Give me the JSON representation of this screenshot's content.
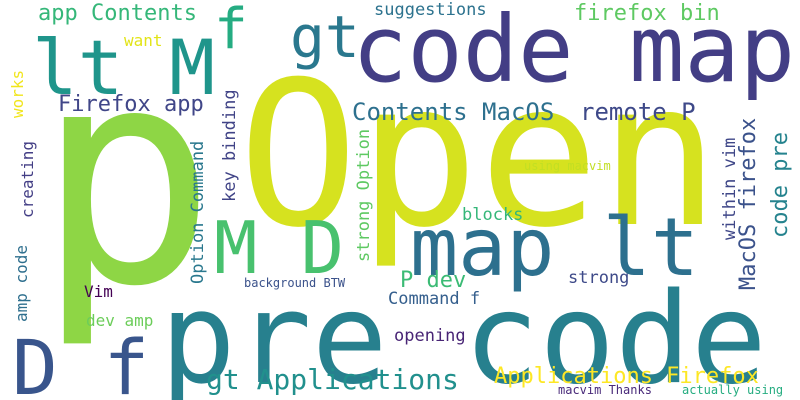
{
  "words": [
    {
      "text": "p",
      "color": "#8ed645",
      "vertical": false
    },
    {
      "text": "Open",
      "color": "#d6e21f",
      "vertical": false
    },
    {
      "text": "pre code",
      "color": "#27808e",
      "vertical": false
    },
    {
      "text": "code map",
      "color": "#433e85",
      "vertical": false
    },
    {
      "text": "lt M",
      "color": "#1f958b",
      "vertical": false
    },
    {
      "text": "map lt",
      "color": "#2d708e",
      "vertical": false
    },
    {
      "text": "M D",
      "color": "#48c16e",
      "vertical": false
    },
    {
      "text": "D f",
      "color": "#39558c",
      "vertical": false
    },
    {
      "text": "gt",
      "color": "#2a788e",
      "vertical": false
    },
    {
      "text": "f",
      "color": "#25ac82",
      "vertical": false
    },
    {
      "text": "app Contents",
      "color": "#35b779",
      "vertical": false
    },
    {
      "text": "gt Applications",
      "color": "#21908d",
      "vertical": false
    },
    {
      "text": "Contents MacOS",
      "color": "#2d708e",
      "vertical": false
    },
    {
      "text": "remote P",
      "color": "#3e4989",
      "vertical": false
    },
    {
      "text": "Firefox app",
      "color": "#404688",
      "vertical": false
    },
    {
      "text": "firefox bin",
      "color": "#5ec962",
      "vertical": false
    },
    {
      "text": "suggestions",
      "color": "#2c728e",
      "vertical": false
    },
    {
      "text": "want",
      "color": "#e2e418",
      "vertical": false
    },
    {
      "text": "Applications Firefox",
      "color": "#fde725",
      "vertical": false
    },
    {
      "text": "P dev",
      "color": "#3bbb75",
      "vertical": false
    },
    {
      "text": "blocks",
      "color": "#35b779",
      "vertical": false
    },
    {
      "text": "strong",
      "color": "#3e4a89",
      "vertical": false
    },
    {
      "text": "Command f",
      "color": "#355f8d",
      "vertical": false
    },
    {
      "text": "opening",
      "color": "#482475",
      "vertical": false
    },
    {
      "text": "dev amp",
      "color": "#6ccd5a",
      "vertical": false
    },
    {
      "text": "Vim",
      "color": "#440154",
      "vertical": false
    },
    {
      "text": "background BTW",
      "color": "#3b528b",
      "vertical": false
    },
    {
      "text": "using macvim",
      "color": "#c2df23",
      "vertical": false
    },
    {
      "text": "macvim Thanks",
      "color": "#482979",
      "vertical": false
    },
    {
      "text": "actually using",
      "color": "#26ad81",
      "vertical": false
    },
    {
      "text": "works",
      "color": "#f1e51d",
      "vertical": true
    },
    {
      "text": "creating",
      "color": "#433e85",
      "vertical": true
    },
    {
      "text": "amp code",
      "color": "#2e6f8e",
      "vertical": true
    },
    {
      "text": "Option Command",
      "color": "#2a788e",
      "vertical": true
    },
    {
      "text": "key binding",
      "color": "#414487",
      "vertical": true
    },
    {
      "text": "strong Option",
      "color": "#5ec962",
      "vertical": true
    },
    {
      "text": "MacOS firefox",
      "color": "#3b528b",
      "vertical": true
    },
    {
      "text": "within vim",
      "color": "#3f4788",
      "vertical": true
    },
    {
      "text": "code pre",
      "color": "#25838e",
      "vertical": true
    }
  ]
}
